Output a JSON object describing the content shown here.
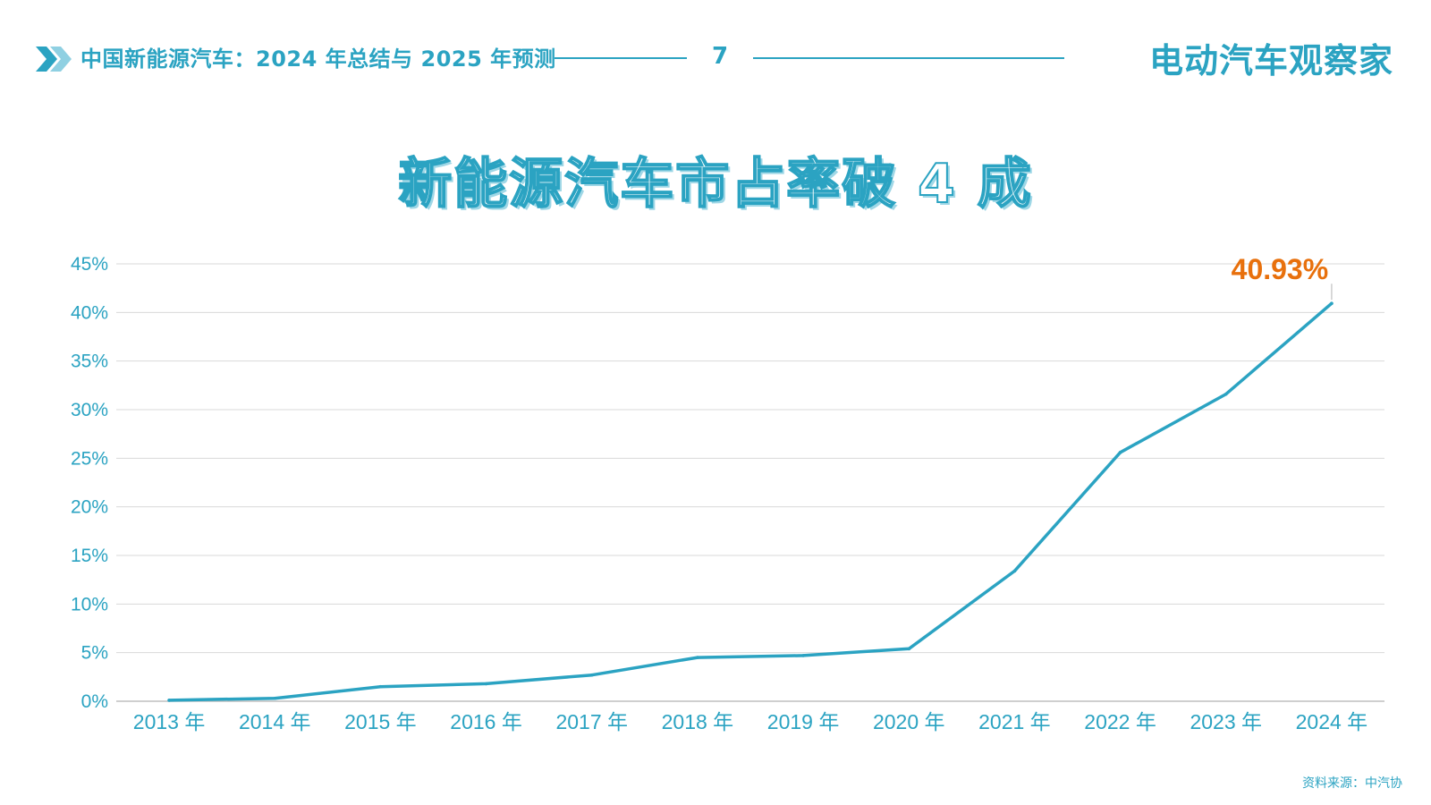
{
  "header": {
    "title": "中国新能源汽车：2024 年总结与 2025 年预测",
    "page_number": "7",
    "brand": "电动汽车观察家",
    "chevron_icon": "double-chevron-right-icon",
    "accent_color": "#2ba3c2",
    "accent_light": "#8fd0e2"
  },
  "chart_data": {
    "type": "line",
    "title": "新能源汽车市占率破 4 成",
    "categories": [
      "2013 年",
      "2014 年",
      "2015 年",
      "2016 年",
      "2017 年",
      "2018 年",
      "2019 年",
      "2020 年",
      "2021 年",
      "2022 年",
      "2023 年",
      "2024 年"
    ],
    "series": [
      {
        "values": [
          0.1,
          0.3,
          1.5,
          1.8,
          2.7,
          4.5,
          4.7,
          5.4,
          13.4,
          25.6,
          31.6,
          40.93
        ],
        "color": "#2ba3c2"
      }
    ],
    "y_ticks": [
      "0%",
      "5%",
      "10%",
      "15%",
      "20%",
      "25%",
      "30%",
      "35%",
      "40%",
      "45%"
    ],
    "ylim": [
      0,
      45
    ],
    "grid": true,
    "legend": "none",
    "annotation": {
      "category": "2024 年",
      "text": "40.93%",
      "color": "#e8700c"
    }
  },
  "source": "资料来源：中汽协"
}
